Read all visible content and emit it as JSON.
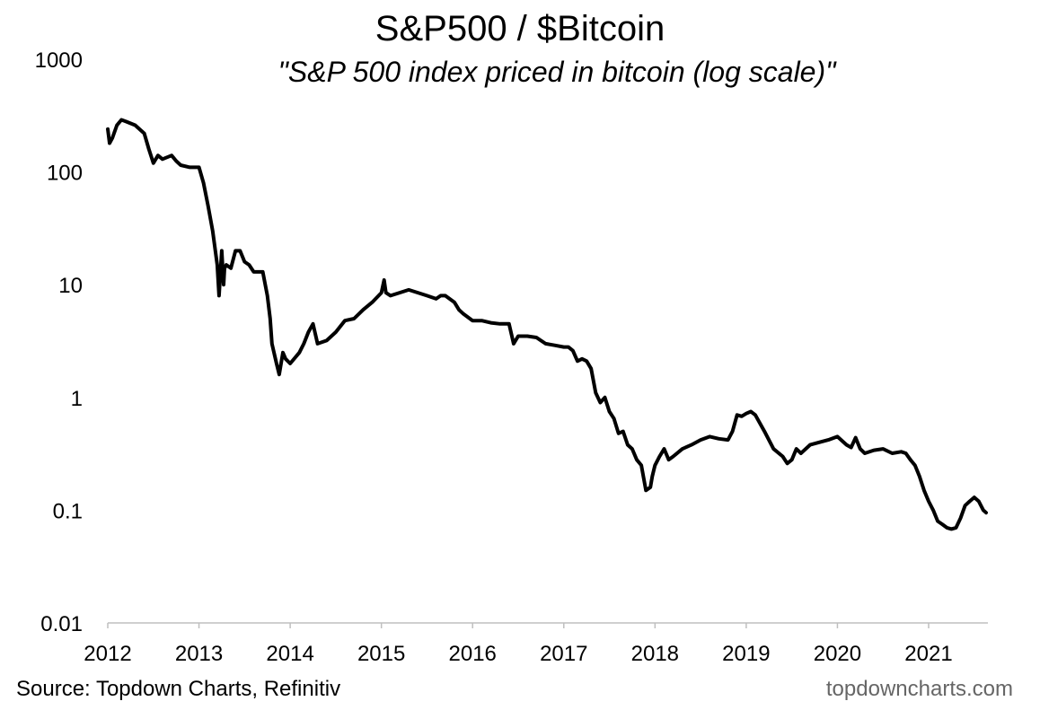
{
  "header": {
    "title": "S&P500 / $Bitcoin",
    "subtitle": "\"S&P 500 index priced in bitcoin (log scale)\""
  },
  "footer": {
    "source": "Source: Topdown Charts, Refinitiv",
    "brand": "topdowncharts.com"
  },
  "colors": {
    "line": "#000000",
    "axis": "#bfbfbf",
    "brand": "#666666"
  },
  "chart_data": {
    "type": "line",
    "title": "S&P500 / $Bitcoin",
    "subtitle": "\"S&P 500 index priced in bitcoin (log scale)\"",
    "y_scale": "log",
    "ylim": [
      0.01,
      1000
    ],
    "xlim": [
      2012.0,
      2021.65
    ],
    "grid": false,
    "legend": "none",
    "y_ticks": [
      {
        "value": 1000,
        "label": "1000"
      },
      {
        "value": 100,
        "label": "100"
      },
      {
        "value": 10,
        "label": "10"
      },
      {
        "value": 1,
        "label": "1"
      },
      {
        "value": 0.1,
        "label": "0.1"
      },
      {
        "value": 0.01,
        "label": "0.01"
      }
    ],
    "x_ticks": [
      {
        "value": 2012,
        "label": "2012"
      },
      {
        "value": 2013,
        "label": "2013"
      },
      {
        "value": 2014,
        "label": "2014"
      },
      {
        "value": 2015,
        "label": "2015"
      },
      {
        "value": 2016,
        "label": "2016"
      },
      {
        "value": 2017,
        "label": "2017"
      },
      {
        "value": 2018,
        "label": "2018"
      },
      {
        "value": 2019,
        "label": "2019"
      },
      {
        "value": 2020,
        "label": "2020"
      },
      {
        "value": 2021,
        "label": "2021"
      }
    ],
    "series": [
      {
        "x": [
          2012.0,
          2012.02,
          2012.05,
          2012.1,
          2012.15,
          2012.2,
          2012.3,
          2012.4,
          2012.45,
          2012.5,
          2012.55,
          2012.6,
          2012.7,
          2012.75,
          2012.8,
          2012.9,
          2013.0,
          2013.05,
          2013.1,
          2013.15,
          2013.2,
          2013.22,
          2013.25,
          2013.27,
          2013.28,
          2013.3,
          2013.35,
          2013.4,
          2013.45,
          2013.5,
          2013.55,
          2013.6,
          2013.65,
          2013.7,
          2013.75,
          2013.78,
          2013.8,
          2013.85,
          2013.88,
          2013.92,
          2013.95,
          2014.0,
          2014.1,
          2014.15,
          2014.2,
          2014.25,
          2014.3,
          2014.4,
          2014.5,
          2014.6,
          2014.7,
          2014.8,
          2014.9,
          2015.0,
          2015.03,
          2015.05,
          2015.1,
          2015.2,
          2015.3,
          2015.4,
          2015.5,
          2015.6,
          2015.65,
          2015.7,
          2015.8,
          2015.85,
          2015.9,
          2016.0,
          2016.1,
          2016.2,
          2016.3,
          2016.4,
          2016.45,
          2016.5,
          2016.6,
          2016.7,
          2016.8,
          2016.9,
          2017.0,
          2017.05,
          2017.1,
          2017.15,
          2017.2,
          2017.25,
          2017.3,
          2017.35,
          2017.4,
          2017.45,
          2017.5,
          2017.55,
          2017.6,
          2017.65,
          2017.7,
          2017.75,
          2017.8,
          2017.85,
          2017.9,
          2017.95,
          2017.97,
          2018.0,
          2018.05,
          2018.1,
          2018.15,
          2018.2,
          2018.3,
          2018.4,
          2018.5,
          2018.6,
          2018.7,
          2018.8,
          2018.85,
          2018.9,
          2018.95,
          2019.0,
          2019.05,
          2019.1,
          2019.2,
          2019.3,
          2019.4,
          2019.45,
          2019.5,
          2019.55,
          2019.6,
          2019.7,
          2019.8,
          2019.9,
          2020.0,
          2020.1,
          2020.15,
          2020.2,
          2020.25,
          2020.3,
          2020.4,
          2020.5,
          2020.6,
          2020.7,
          2020.75,
          2020.8,
          2020.85,
          2020.9,
          2020.95,
          2021.0,
          2021.05,
          2021.1,
          2021.15,
          2021.2,
          2021.25,
          2021.3,
          2021.35,
          2021.4,
          2021.45,
          2021.5,
          2021.55,
          2021.6,
          2021.63
        ],
        "values": [
          240,
          180,
          200,
          260,
          290,
          280,
          260,
          220,
          160,
          120,
          140,
          130,
          140,
          125,
          115,
          110,
          110,
          80,
          50,
          30,
          15,
          8,
          20,
          10,
          14,
          15,
          14,
          20,
          20,
          16,
          15,
          13,
          13,
          13,
          8,
          5,
          3,
          2,
          1.6,
          2.5,
          2.2,
          2.0,
          2.5,
          3.0,
          3.8,
          4.5,
          3.0,
          3.2,
          3.8,
          4.8,
          5.0,
          6.0,
          7.0,
          8.5,
          11,
          8.5,
          8.0,
          8.5,
          9.0,
          8.5,
          8.0,
          7.5,
          8.0,
          8.0,
          7.0,
          6.0,
          5.5,
          4.8,
          4.8,
          4.6,
          4.5,
          4.5,
          3.0,
          3.5,
          3.5,
          3.4,
          3.0,
          2.9,
          2.8,
          2.8,
          2.6,
          2.1,
          2.2,
          2.1,
          1.8,
          1.1,
          0.9,
          1.0,
          0.75,
          0.65,
          0.48,
          0.5,
          0.38,
          0.35,
          0.28,
          0.25,
          0.15,
          0.16,
          0.2,
          0.25,
          0.3,
          0.35,
          0.28,
          0.3,
          0.35,
          0.38,
          0.42,
          0.45,
          0.43,
          0.42,
          0.5,
          0.7,
          0.68,
          0.72,
          0.75,
          0.7,
          0.5,
          0.35,
          0.3,
          0.26,
          0.28,
          0.35,
          0.32,
          0.38,
          0.4,
          0.42,
          0.45,
          0.38,
          0.36,
          0.44,
          0.35,
          0.32,
          0.34,
          0.35,
          0.32,
          0.33,
          0.32,
          0.28,
          0.25,
          0.2,
          0.15,
          0.12,
          0.1,
          0.08,
          0.075,
          0.07,
          0.068,
          0.07,
          0.085,
          0.11,
          0.12,
          0.13,
          0.12,
          0.1,
          0.095
        ]
      }
    ]
  }
}
